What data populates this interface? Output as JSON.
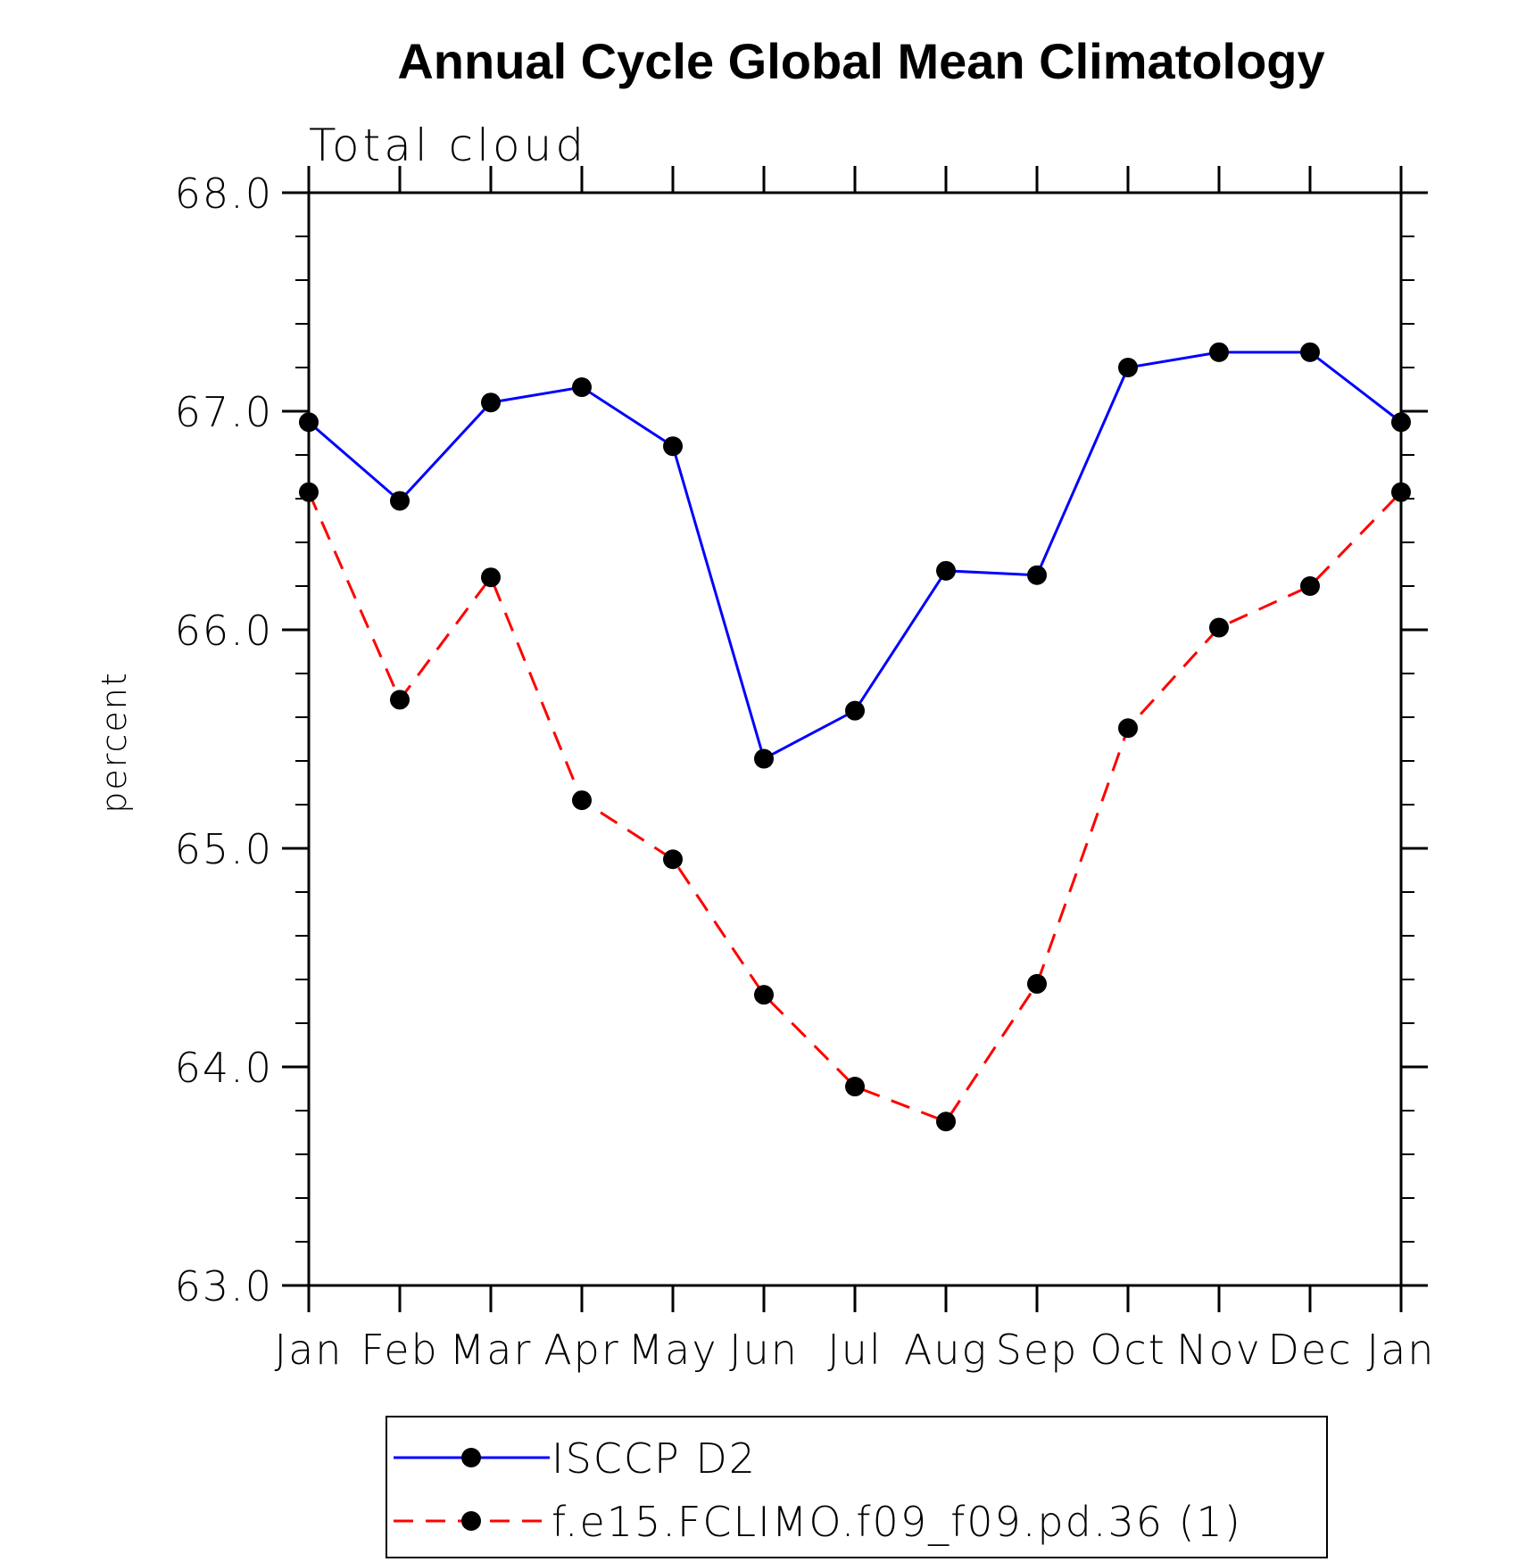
{
  "chart_data": {
    "type": "line",
    "title": "Annual Cycle Global Mean Climatology",
    "subtitle": "Total cloud",
    "xlabel": "",
    "ylabel": "percent",
    "categories": [
      "Jan",
      "Feb",
      "Mar",
      "Apr",
      "May",
      "Jun",
      "Jul",
      "Aug",
      "Sep",
      "Oct",
      "Nov",
      "Dec",
      "Jan"
    ],
    "ylim": [
      63.0,
      68.0
    ],
    "yticks": [
      "63.0",
      "64.0",
      "65.0",
      "66.0",
      "67.0",
      "68.0"
    ],
    "grid": false,
    "legend_position": "bottom",
    "series": [
      {
        "name": "ISCCP D2",
        "color": "#0000ff",
        "dash": "solid",
        "values": [
          66.95,
          66.59,
          67.04,
          67.11,
          66.84,
          65.41,
          65.63,
          66.27,
          66.25,
          67.2,
          67.27,
          67.27,
          66.95
        ]
      },
      {
        "name": "f.e15.FCLIMO.f09_f09.pd.36 (1)",
        "color": "#ff0000",
        "dash": "dashed",
        "values": [
          66.63,
          65.68,
          66.24,
          65.22,
          64.95,
          64.33,
          63.91,
          63.75,
          64.38,
          65.55,
          66.01,
          66.2,
          66.63
        ]
      }
    ]
  }
}
